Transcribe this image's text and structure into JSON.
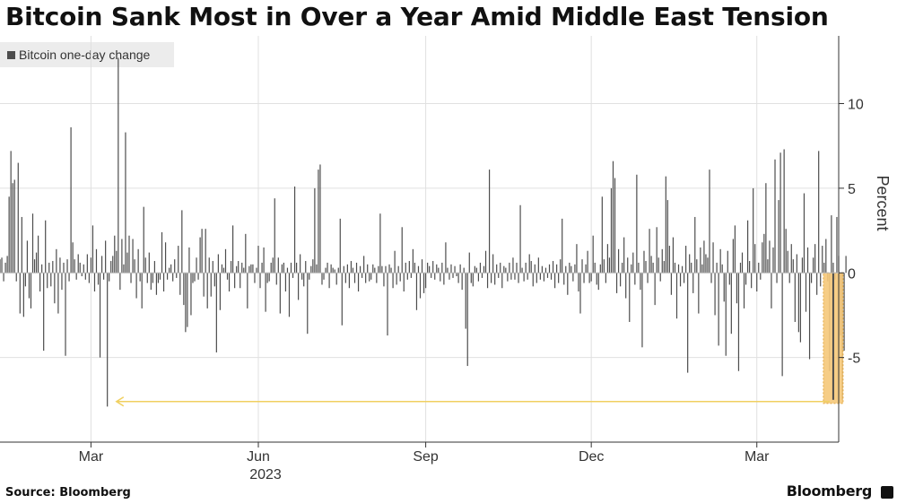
{
  "header": {
    "title": "Bitcoin Sank Most in Over a Year Amid Middle East Tension"
  },
  "footer": {
    "source": "Source: Bloomberg",
    "brand": "Bloomberg"
  },
  "colors": {
    "bars": "#4d4d4d",
    "highlight_fill": "#f6c87a",
    "highlight_border": "#e0a030",
    "arrow": "#f0d060",
    "grid": "#e0e0e0"
  },
  "chart_data": {
    "type": "bar",
    "title": "",
    "legend": [
      "Bitcoin one-day change"
    ],
    "legend_position": "top-left",
    "ylabel": "Percent",
    "xlabel": "",
    "ylim": [
      -10,
      14
    ],
    "yticks": [
      -5,
      0,
      5,
      10
    ],
    "grid": true,
    "x_range": [
      "2023-01-10",
      "2024-04-15"
    ],
    "xticks": [
      {
        "label": "Mar",
        "date": "2023-03-01"
      },
      {
        "label": "Jun",
        "date": "2023-06-01"
      },
      {
        "label": "Sep",
        "date": "2023-09-01"
      },
      {
        "label": "Dec",
        "date": "2023-12-01"
      },
      {
        "label": "Mar",
        "date": "2024-03-01"
      }
    ],
    "year_label": {
      "label": "2023",
      "date": "2023-06-01"
    },
    "series": [
      {
        "name": "Bitcoin one-day change",
        "start_date": "2023-01-10",
        "values": [
          0.8,
          0.9,
          -0.5,
          0.6,
          1.0,
          4.5,
          7.2,
          5.3,
          5.5,
          -0.5,
          6.5,
          -2.4,
          3.3,
          -2.6,
          -0.8,
          1.9,
          -1.5,
          -2.1,
          3.5,
          0.8,
          1.2,
          2.2,
          -1.1,
          0.5,
          -4.6,
          3.1,
          -0.9,
          0.6,
          -0.8,
          0.7,
          -1.8,
          1.4,
          -2.4,
          0.9,
          -1.0,
          0.6,
          -4.9,
          0.8,
          -0.5,
          8.6,
          1.8,
          0.8,
          -0.4,
          1.1,
          0.6,
          -0.2,
          0.5,
          -0.4,
          1.1,
          -0.6,
          0.9,
          2.8,
          -1.1,
          1.4,
          -0.7,
          -5.0,
          1.0,
          -0.4,
          1.9,
          -7.9,
          -0.5,
          0.7,
          1.0,
          2.2,
          1.3,
          12.7,
          -1.0,
          2.0,
          0.5,
          8.3,
          1.2,
          2.2,
          -0.6,
          2.0,
          0.8,
          -1.5,
          1.4,
          -0.5,
          -2.1,
          3.9,
          0.9,
          -0.6,
          1.2,
          -1.0,
          -0.6,
          0.7,
          -1.3,
          -0.6,
          -0.4,
          2.4,
          -1.1,
          1.8,
          -0.4,
          0.3,
          0.5,
          -0.5,
          0.8,
          -0.3,
          1.6,
          -1.3,
          3.7,
          -1.9,
          -3.5,
          -3.2,
          1.5,
          -2.5,
          -0.6,
          -0.5,
          0.9,
          -0.4,
          2.1,
          2.6,
          -1.4,
          2.6,
          -2.1,
          0.9,
          -1.4,
          0.7,
          -0.8,
          -4.7,
          1.1,
          -2.2,
          0.5,
          0.3,
          1.4,
          -0.4,
          -1.1,
          0.7,
          2.8,
          -0.9,
          0.4,
          0.7,
          -0.9,
          0.6,
          0.3,
          2.3,
          -2.1,
          0.4,
          0.5,
          0.5,
          -0.6,
          0.3,
          1.6,
          -0.9,
          0.6,
          1.5,
          -2.3,
          -0.6,
          -0.5,
          0.6,
          0.9,
          4.4,
          -0.7,
          0.9,
          -2.4,
          0.5,
          0.6,
          -1.1,
          0.3,
          -2.6,
          0.6,
          -0.3,
          5.1,
          0.6,
          -1.6,
          1.1,
          -0.4,
          -0.8,
          0.7,
          -3.6,
          -0.4,
          0.4,
          0.8,
          5.0,
          0.5,
          6.1,
          6.4,
          -0.7,
          -0.4,
          0.3,
          0.6,
          -0.9,
          0.5,
          0.3,
          0.2,
          -0.7,
          0.3,
          3.2,
          -3.1,
          0.4,
          -0.6,
          0.5,
          -0.9,
          0.7,
          0.3,
          -0.6,
          0.6,
          -1.1,
          0.4,
          -0.3,
          1.0,
          -0.6,
          0.5,
          -0.5,
          -0.4,
          0.5,
          0.3,
          -0.6,
          0.4,
          3.5,
          0.4,
          -0.8,
          0.4,
          -3.7,
          0.5,
          0.3,
          -0.9,
          1.3,
          -0.7,
          0.4,
          -0.5,
          2.7,
          -1.1,
          0.6,
          -0.4,
          0.7,
          -0.3,
          1.4,
          0.6,
          -2.2,
          0.4,
          -1.5,
          0.8,
          -1.2,
          -0.9,
          0.6,
          0.4,
          -0.3,
          0.7,
          -0.4,
          0.5,
          0.3,
          -0.5,
          0.6,
          -0.7,
          1.8,
          0.3,
          -0.4,
          0.5,
          -0.3,
          0.4,
          -0.2,
          -0.6,
          0.5,
          -1.0,
          0.3,
          -3.3,
          -5.5,
          1.2,
          -0.6,
          -0.8,
          0.4,
          0.3,
          -0.5,
          0.6,
          -0.3,
          0.4,
          1.3,
          -0.9,
          6.1,
          -0.6,
          1.1,
          -0.7,
          0.5,
          -0.3,
          0.6,
          -0.9,
          0.4,
          0.3,
          -0.5,
          0.6,
          -0.4,
          0.9,
          -0.4,
          0.6,
          -0.6,
          4.0,
          0.3,
          -0.5,
          0.6,
          -0.4,
          1.1,
          0.7,
          -0.8,
          0.5,
          -0.6,
          0.9,
          -0.4,
          0.4,
          -0.5,
          0.3,
          -0.3,
          0.5,
          -0.4,
          0.7,
          -0.9,
          0.5,
          -0.6,
          0.8,
          3.2,
          -0.7,
          0.4,
          -1.3,
          0.6,
          0.4,
          -0.5,
          0.5,
          1.7,
          -1.1,
          -2.4,
          0.8,
          -0.6,
          0.5,
          1.3,
          -0.6,
          -0.5,
          2.2,
          0.6,
          -0.7,
          -1.0,
          0.5,
          4.5,
          0.8,
          -0.6,
          1.7,
          0.9,
          5.0,
          6.6,
          5.6,
          -1.2,
          1.4,
          -0.8,
          0.6,
          2.1,
          -1.5,
          0.9,
          -2.9,
          0.5,
          1.2,
          -0.7,
          5.8,
          0.6,
          -1.0,
          -4.4,
          1.3,
          0.7,
          -0.6,
          2.6,
          1.0,
          0.6,
          -1.9,
          2.7,
          0.9,
          -0.5,
          1.4,
          0.7,
          5.7,
          4.3,
          1.6,
          -1.3,
          2.1,
          0.6,
          -2.7,
          0.5,
          -0.8,
          0.4,
          -0.6,
          1.6,
          -5.9,
          1.1,
          0.6,
          -1.2,
          3.3,
          0.8,
          -2.4,
          1.5,
          0.5,
          1.9,
          1.1,
          0.9,
          6.1,
          -0.6,
          1.8,
          -2.5,
          0.6,
          -4.3,
          1.4,
          0.5,
          -1.7,
          -4.9,
          1.3,
          -0.7,
          -3.6,
          2.0,
          2.8,
          -1.8,
          -5.8,
          0.6,
          1.2,
          -2.1,
          -0.7,
          3.1,
          0.7,
          -0.9,
          5.0,
          1.7,
          -1.1,
          0.6,
          -0.4,
          1.8,
          2.3,
          5.3,
          0.8,
          1.9,
          -2.1,
          1.5,
          6.7,
          -0.6,
          4.3,
          7.1,
          -6.1,
          7.3,
          2.6,
          1.3,
          -0.6,
          1.7,
          0.8,
          -2.9,
          1.1,
          -3.5,
          -4.1,
          0.9,
          4.7,
          -2.3,
          1.5,
          -5.1,
          -0.6,
          0.9,
          1.7,
          -1.3,
          7.2,
          -0.8,
          1.6,
          0.6,
          2.0,
          -0.5,
          -5.8,
          3.4,
          0.6,
          -0.4,
          3.3,
          1.0,
          -3.7,
          -7.5,
          -4.6,
          1.0
        ]
      }
    ],
    "annotations": [
      {
        "type": "highlight-box",
        "date": "2024-04-12",
        "value": -7.5
      },
      {
        "type": "arrow",
        "from_date": "2024-04-10",
        "to_date": "2023-03-15",
        "value": -7.6
      }
    ]
  }
}
